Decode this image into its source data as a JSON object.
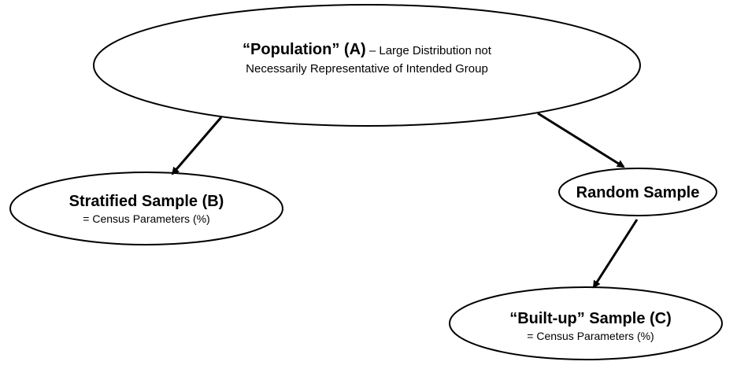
{
  "nodes": {
    "population": {
      "title": "“Population” (A)",
      "desc_line1": " – Large Distribution not",
      "desc_line2": "Necessarily Representative of Intended Group"
    },
    "stratified": {
      "title": "Stratified Sample (B)",
      "sub": "= Census Parameters (%)"
    },
    "random": {
      "title": "Random Sample"
    },
    "builtup": {
      "title": "“Built-up” Sample (C)",
      "sub": "= Census Parameters (%)"
    }
  },
  "colors": {
    "stroke": "#000000",
    "fill": "#ffffff"
  }
}
